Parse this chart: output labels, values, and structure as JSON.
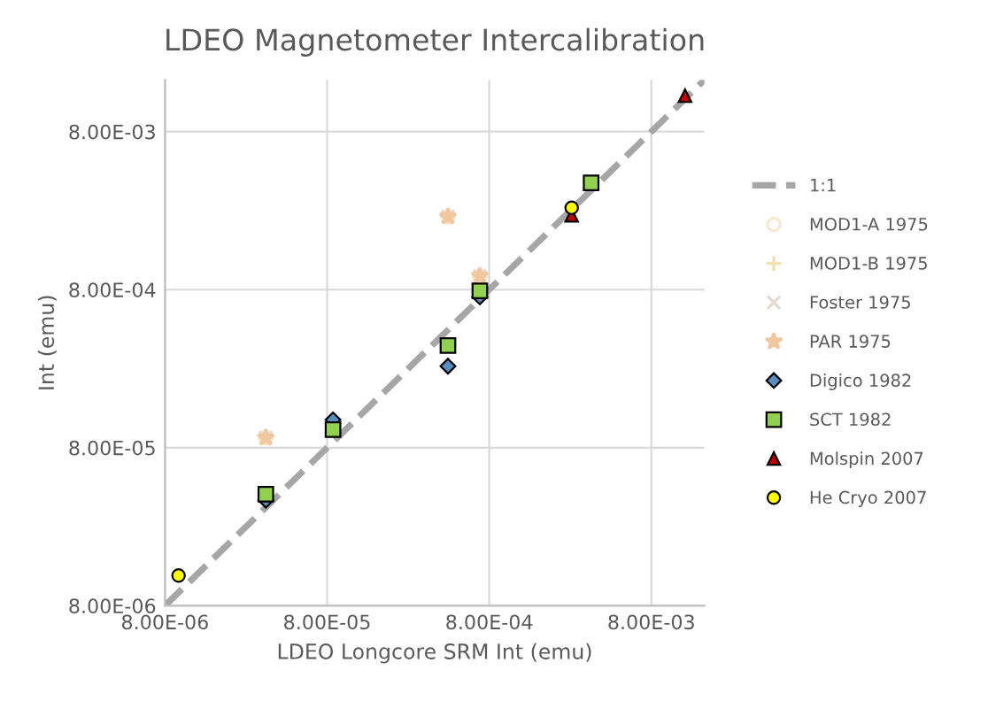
{
  "chart_data": {
    "type": "scatter",
    "title": "LDEO Magnetometer Intercalibration",
    "xlabel": "LDEO Longcore SRM Int (emu)",
    "ylabel": "Int (emu)",
    "log": "xy",
    "grid": true,
    "legend": "right",
    "xlim": [
      8e-06,
      0.017
    ],
    "ylim": [
      8e-06,
      0.017
    ],
    "xticks": [
      {
        "value": 8e-06,
        "label": "8.00E-06"
      },
      {
        "value": 8e-05,
        "label": "8.00E-05"
      },
      {
        "value": 0.0008,
        "label": "8.00E-04"
      },
      {
        "value": 0.008,
        "label": "8.00E-03"
      }
    ],
    "yticks": [
      {
        "value": 8e-06,
        "label": "8.00E-06"
      },
      {
        "value": 8e-05,
        "label": "8.00E-05"
      },
      {
        "value": 0.0008,
        "label": "8.00E-04"
      },
      {
        "value": 0.008,
        "label": "8.00E-03"
      }
    ],
    "series": [
      {
        "name": "1:1",
        "type": "line",
        "line_style": "dashed",
        "marker": "none",
        "color": "#a6a6a6",
        "x": [
          8e-06,
          0.017
        ],
        "values": [
          8e-06,
          0.017
        ]
      },
      {
        "name": "MOD1-A 1975",
        "marker": "circle",
        "color": "#f7ead2",
        "x": [
          3.35e-05,
          0.000445,
          0.0007
        ],
        "values": [
          9.25e-05,
          0.00232,
          0.000976
        ]
      },
      {
        "name": "MOD1-B 1975",
        "marker": "plus",
        "color": "#f5deb0",
        "x": [
          3.35e-05,
          0.000445,
          0.0007
        ],
        "values": [
          9.25e-05,
          0.00232,
          0.000976
        ]
      },
      {
        "name": "Foster 1975",
        "marker": "cross",
        "color": "#e6d8cc",
        "x": [
          3.35e-05,
          0.000445,
          0.0007
        ],
        "values": [
          9.25e-05,
          0.00232,
          0.000976
        ]
      },
      {
        "name": "PAR 1975",
        "marker": "star",
        "color": "#f0c8a0",
        "x": [
          3.35e-05,
          0.000445,
          0.0007
        ],
        "values": [
          9.25e-05,
          0.00232,
          0.000976
        ]
      },
      {
        "name": "Digico 1982",
        "marker": "diamond",
        "color": "#5b8cc0",
        "x": [
          3.35e-05,
          8.7e-05,
          0.000445,
          0.0007
        ],
        "values": [
          3.72e-05,
          0.00012,
          0.000262,
          0.00072
        ]
      },
      {
        "name": "SCT 1982",
        "marker": "square",
        "color": "#92d050",
        "x": [
          3.35e-05,
          8.7e-05,
          0.000445,
          0.0007,
          0.0034
        ],
        "values": [
          4.06e-05,
          0.000104,
          0.000354,
          0.000786,
          0.00379
        ]
      },
      {
        "name": "Molspin 2007",
        "marker": "triangle",
        "color": "#c00000",
        "x": [
          0.00258,
          0.0129
        ],
        "values": [
          0.00236,
          0.0135
        ]
      },
      {
        "name": "He Cryo 2007",
        "marker": "circle",
        "color": "#ffff00",
        "x": [
          9.7e-06,
          0.00258
        ],
        "values": [
          1.24e-05,
          0.00264
        ]
      }
    ]
  }
}
